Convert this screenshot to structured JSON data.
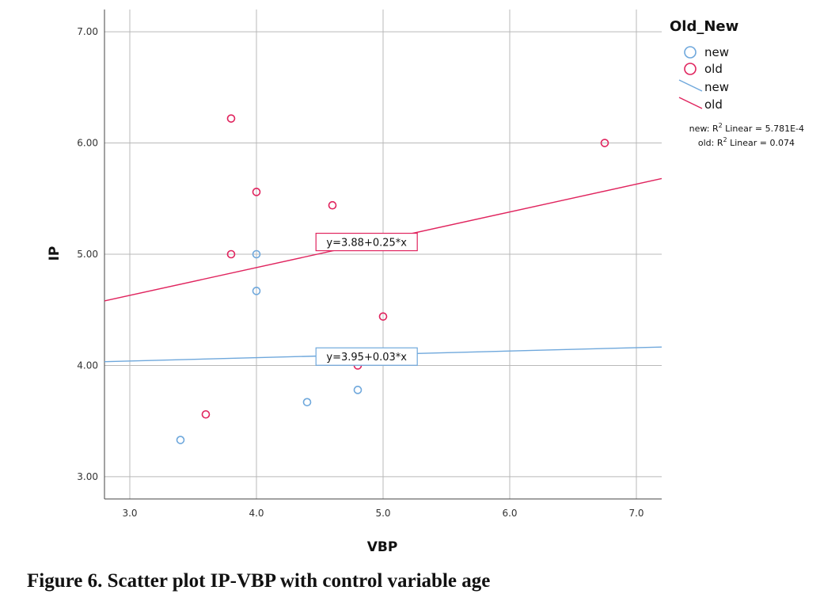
{
  "chart_data": {
    "type": "scatter",
    "title": "",
    "xlabel": "VBP",
    "ylabel": "IP",
    "xlim": [
      2.8,
      7.2
    ],
    "ylim": [
      2.8,
      7.2
    ],
    "x_ticks": [
      3.0,
      4.0,
      5.0,
      6.0,
      7.0
    ],
    "y_ticks": [
      3.0,
      4.0,
      5.0,
      6.0,
      7.0
    ],
    "x_tick_labels": [
      "3.0",
      "4.0",
      "5.0",
      "6.0",
      "7.0"
    ],
    "y_tick_labels": [
      "3.00",
      "4.00",
      "5.00",
      "6.00",
      "7.00"
    ],
    "grid": true,
    "legend": {
      "title": "Old_New",
      "placement": "right",
      "marker_entries": [
        "new",
        "old"
      ],
      "line_entries": [
        "new",
        "old"
      ],
      "r2_lines": {
        "new_prefix": "new: R",
        "new_suffix": " Linear = 5.781E-4",
        "old_prefix": "old: R",
        "old_suffix": " Linear = 0.074",
        "superscript": "2"
      }
    },
    "series": [
      {
        "name": "new",
        "color": "#6FA8DC",
        "points": [
          [
            3.4,
            3.33
          ],
          [
            4.0,
            5.0
          ],
          [
            4.0,
            4.67
          ],
          [
            4.4,
            3.67
          ],
          [
            4.8,
            3.78
          ]
        ],
        "fit": {
          "intercept": 3.95,
          "slope": 0.03,
          "equation": "y=3.95+0.03*x",
          "label_x": 4.87,
          "label_y": 4.08
        }
      },
      {
        "name": "old",
        "color": "#E0245E",
        "points": [
          [
            3.6,
            3.56
          ],
          [
            3.8,
            5.0
          ],
          [
            3.8,
            6.22
          ],
          [
            4.0,
            5.56
          ],
          [
            4.6,
            5.44
          ],
          [
            4.8,
            4.0
          ],
          [
            5.0,
            4.44
          ],
          [
            6.75,
            6.0
          ]
        ],
        "fit": {
          "intercept": 3.88,
          "slope": 0.25,
          "equation": "y=3.88+0.25*x",
          "label_x": 4.87,
          "label_y": 5.11
        }
      }
    ]
  },
  "caption": "Figure 6. Scatter plot IP-VBP with control variable age"
}
